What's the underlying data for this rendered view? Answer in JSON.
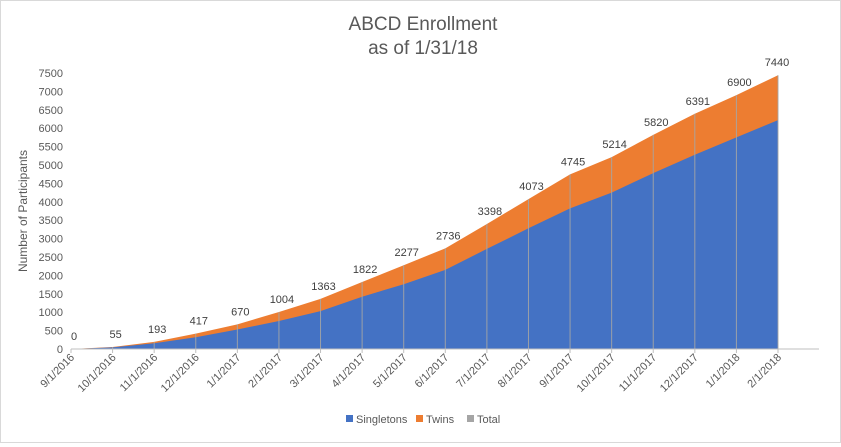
{
  "chart_data": {
    "type": "area",
    "title": "ABCD Enrollment",
    "subtitle": "as of 1/31/18",
    "xlabel": "",
    "ylabel": "Number of Participants",
    "ylim": [
      0,
      7500
    ],
    "yticks": [
      0,
      500,
      1000,
      1500,
      2000,
      2500,
      3000,
      3500,
      4000,
      4500,
      5000,
      5500,
      6000,
      6500,
      7000,
      7500
    ],
    "stacked": true,
    "grid": false,
    "legend_position": "bottom",
    "categories": [
      "9/1/2016",
      "10/1/2016",
      "11/1/2016",
      "12/1/2016",
      "1/1/2017",
      "2/1/2017",
      "3/1/2017",
      "4/1/2017",
      "5/1/2017",
      "6/1/2017",
      "7/1/2017",
      "8/1/2017",
      "9/1/2017",
      "10/1/2017",
      "11/1/2017",
      "12/1/2017",
      "1/1/2018",
      "2/1/2018"
    ],
    "series": [
      {
        "name": "Singletons",
        "color": "#4472c4",
        "values": [
          0,
          45,
          155,
          320,
          530,
          760,
          1030,
          1420,
          1760,
          2150,
          2720,
          3280,
          3820,
          4250,
          4780,
          5280,
          5750,
          6220
        ]
      },
      {
        "name": "Twins",
        "color": "#ed7d31",
        "values": [
          0,
          10,
          38,
          97,
          140,
          244,
          333,
          402,
          517,
          586,
          678,
          793,
          925,
          964,
          1040,
          1111,
          1150,
          1220
        ]
      },
      {
        "name": "Total",
        "color": "#a5a5a5",
        "values": [
          0,
          55,
          193,
          417,
          670,
          1004,
          1363,
          1822,
          2277,
          2736,
          3398,
          4073,
          4745,
          5214,
          5820,
          6391,
          6900,
          7440
        ]
      }
    ],
    "data_labels": [
      "0",
      "55",
      "193",
      "417",
      "670",
      "1004",
      "1363",
      "1822",
      "2277",
      "2736",
      "3398",
      "4073",
      "4745",
      "5214",
      "5820",
      "6391",
      "6900",
      "7440"
    ]
  }
}
